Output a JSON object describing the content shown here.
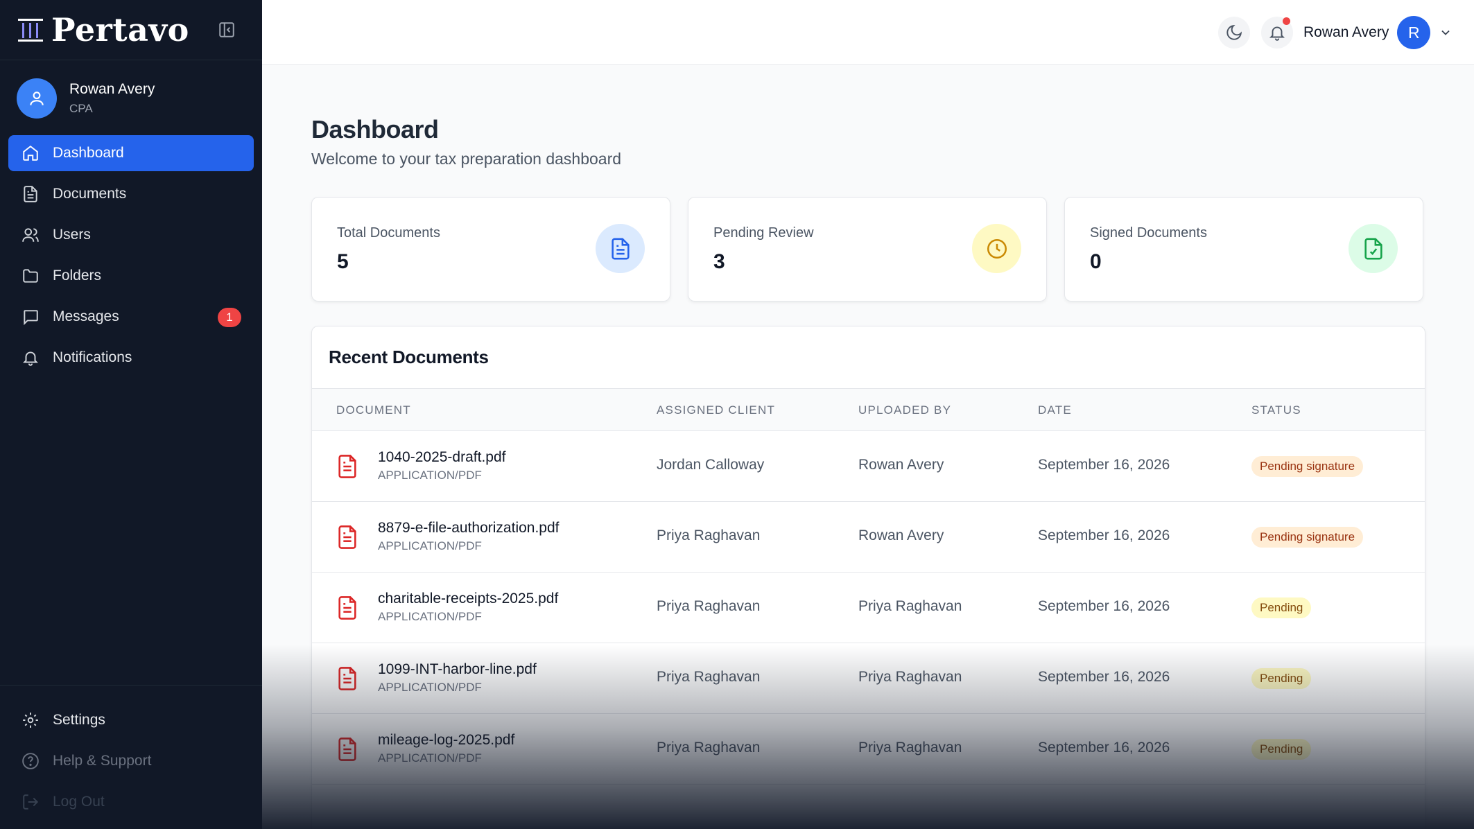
{
  "brand": {
    "name": "Pertavo"
  },
  "profile": {
    "name": "Rowan Avery",
    "role": "CPA"
  },
  "nav": [
    {
      "label": "Dashboard",
      "icon": "home-icon",
      "active": true
    },
    {
      "label": "Documents",
      "icon": "document-icon"
    },
    {
      "label": "Users",
      "icon": "users-icon"
    },
    {
      "label": "Folders",
      "icon": "folder-icon"
    },
    {
      "label": "Messages",
      "icon": "message-icon",
      "badge": "1"
    },
    {
      "label": "Notifications",
      "icon": "bell-icon"
    }
  ],
  "bottom_nav": [
    {
      "label": "Settings",
      "icon": "gear-icon"
    },
    {
      "label": "Help & Support",
      "icon": "help-icon"
    },
    {
      "label": "Log Out",
      "icon": "logout-icon"
    }
  ],
  "header": {
    "user_name": "Rowan Avery",
    "avatar_initial": "R"
  },
  "page": {
    "title": "Dashboard",
    "subtitle": "Welcome to your tax preparation dashboard"
  },
  "stats": [
    {
      "label": "Total Documents",
      "value": "5",
      "color": "#2563eb",
      "bg": "#dbeafe"
    },
    {
      "label": "Pending Review",
      "value": "3",
      "color": "#ca8a04",
      "bg": "#fef9c3"
    },
    {
      "label": "Signed Documents",
      "value": "0",
      "color": "#16a34a",
      "bg": "#dcfce7"
    }
  ],
  "recent": {
    "title": "Recent Documents",
    "columns": [
      "DOCUMENT",
      "ASSIGNED CLIENT",
      "UPLOADED BY",
      "DATE",
      "STATUS"
    ],
    "rows": [
      {
        "name": "1040-2025-draft.pdf",
        "type": "APPLICATION/PDF",
        "client": "Jordan Calloway",
        "uploaded_by": "Rowan Avery",
        "date": "September 16, 2026",
        "status": "Pending signature"
      },
      {
        "name": "8879-e-file-authorization.pdf",
        "type": "APPLICATION/PDF",
        "client": "Priya Raghavan",
        "uploaded_by": "Rowan Avery",
        "date": "September 16, 2026",
        "status": "Pending signature"
      },
      {
        "name": "charitable-receipts-2025.pdf",
        "type": "APPLICATION/PDF",
        "client": "Priya Raghavan",
        "uploaded_by": "Priya Raghavan",
        "date": "September 16, 2026",
        "status": "Pending"
      },
      {
        "name": "1099-INT-harbor-line.pdf",
        "type": "APPLICATION/PDF",
        "client": "Priya Raghavan",
        "uploaded_by": "Priya Raghavan",
        "date": "September 16, 2026",
        "status": "Pending"
      },
      {
        "name": "mileage-log-2025.pdf",
        "type": "APPLICATION/PDF",
        "client": "Priya Raghavan",
        "uploaded_by": "Priya Raghavan",
        "date": "September 16, 2026",
        "status": "Pending"
      }
    ]
  },
  "colors": {
    "sidebar": "#111827",
    "accent": "#2563eb",
    "badge": "#ef4444",
    "pdf": "#dc2626"
  }
}
